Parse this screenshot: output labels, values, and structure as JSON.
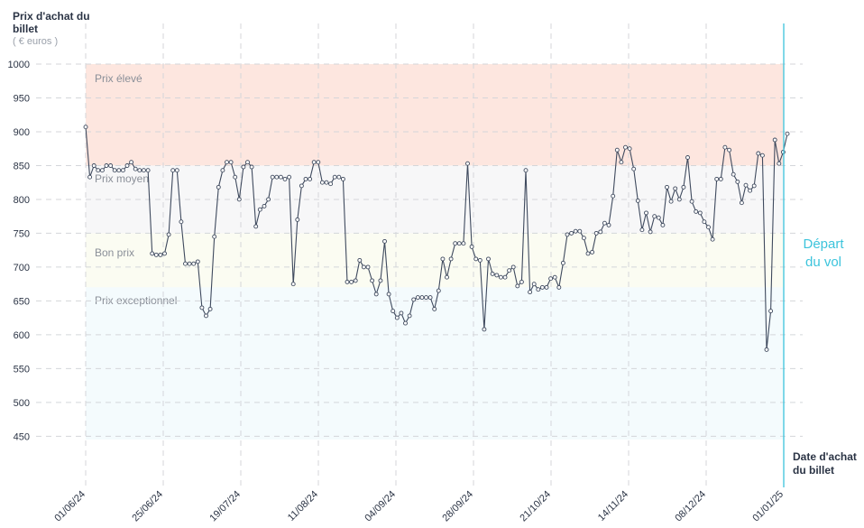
{
  "chart_data": {
    "type": "line",
    "ylabel": "Prix d'achat du billet",
    "yunit": "( € euros )",
    "xlabel": "Date d'achat du billet",
    "ylim": [
      400,
      1000
    ],
    "yticks": [
      1000,
      950,
      900,
      850,
      800,
      750,
      700,
      650,
      600,
      550,
      500,
      450
    ],
    "xticks": [
      "01/06/24",
      "25/06/24",
      "19/07/24",
      "11/08/24",
      "04/09/24",
      "28/09/24",
      "21/10/24",
      "14/11/24",
      "08/12/24",
      "01/01/25"
    ],
    "grid": true,
    "departure_label": "Départ du vol",
    "bands": [
      {
        "label": "Prix élevé",
        "from": 850,
        "to": 1000,
        "color": "#fde6df"
      },
      {
        "label": "Prix moyen",
        "from": 750,
        "to": 850,
        "color": "#f7f7f8"
      },
      {
        "label": "Bon prix",
        "from": 670,
        "to": 750,
        "color": "#fbfcf2"
      },
      {
        "label": "Prix exceptionnel",
        "from": 400,
        "to": 670,
        "color": "#f4fbfd"
      }
    ],
    "line_color": "#3f4a5e",
    "departure_color": "#3cc4dc",
    "values": [
      907,
      833,
      850,
      843,
      843,
      850,
      850,
      843,
      843,
      843,
      850,
      855,
      845,
      843,
      843,
      843,
      720,
      718,
      718,
      720,
      748,
      843,
      843,
      767,
      705,
      705,
      705,
      708,
      640,
      628,
      638,
      745,
      818,
      843,
      855,
      855,
      833,
      800,
      848,
      855,
      848,
      760,
      785,
      790,
      800,
      833,
      833,
      833,
      830,
      833,
      675,
      770,
      820,
      830,
      830,
      855,
      855,
      825,
      825,
      823,
      833,
      833,
      830,
      678,
      678,
      680,
      710,
      700,
      700,
      680,
      660,
      680,
      738,
      660,
      635,
      625,
      632,
      617,
      628,
      652,
      655,
      655,
      655,
      655,
      638,
      665,
      712,
      685,
      712,
      735,
      735,
      735,
      853,
      730,
      712,
      710,
      608,
      712,
      690,
      688,
      685,
      685,
      695,
      700,
      672,
      678,
      843,
      663,
      675,
      667,
      670,
      670,
      683,
      685,
      670,
      706,
      748,
      750,
      753,
      753,
      743,
      720,
      722,
      750,
      752,
      765,
      762,
      805,
      873,
      855,
      877,
      875,
      845,
      798,
      755,
      780,
      752,
      775,
      773,
      762,
      818,
      797,
      816,
      800,
      818,
      862,
      797,
      782,
      780,
      767,
      759,
      741,
      830,
      830,
      877,
      873,
      837,
      826,
      795,
      821,
      813,
      820,
      868,
      865,
      578,
      635,
      888,
      853,
      870,
      897
    ]
  }
}
